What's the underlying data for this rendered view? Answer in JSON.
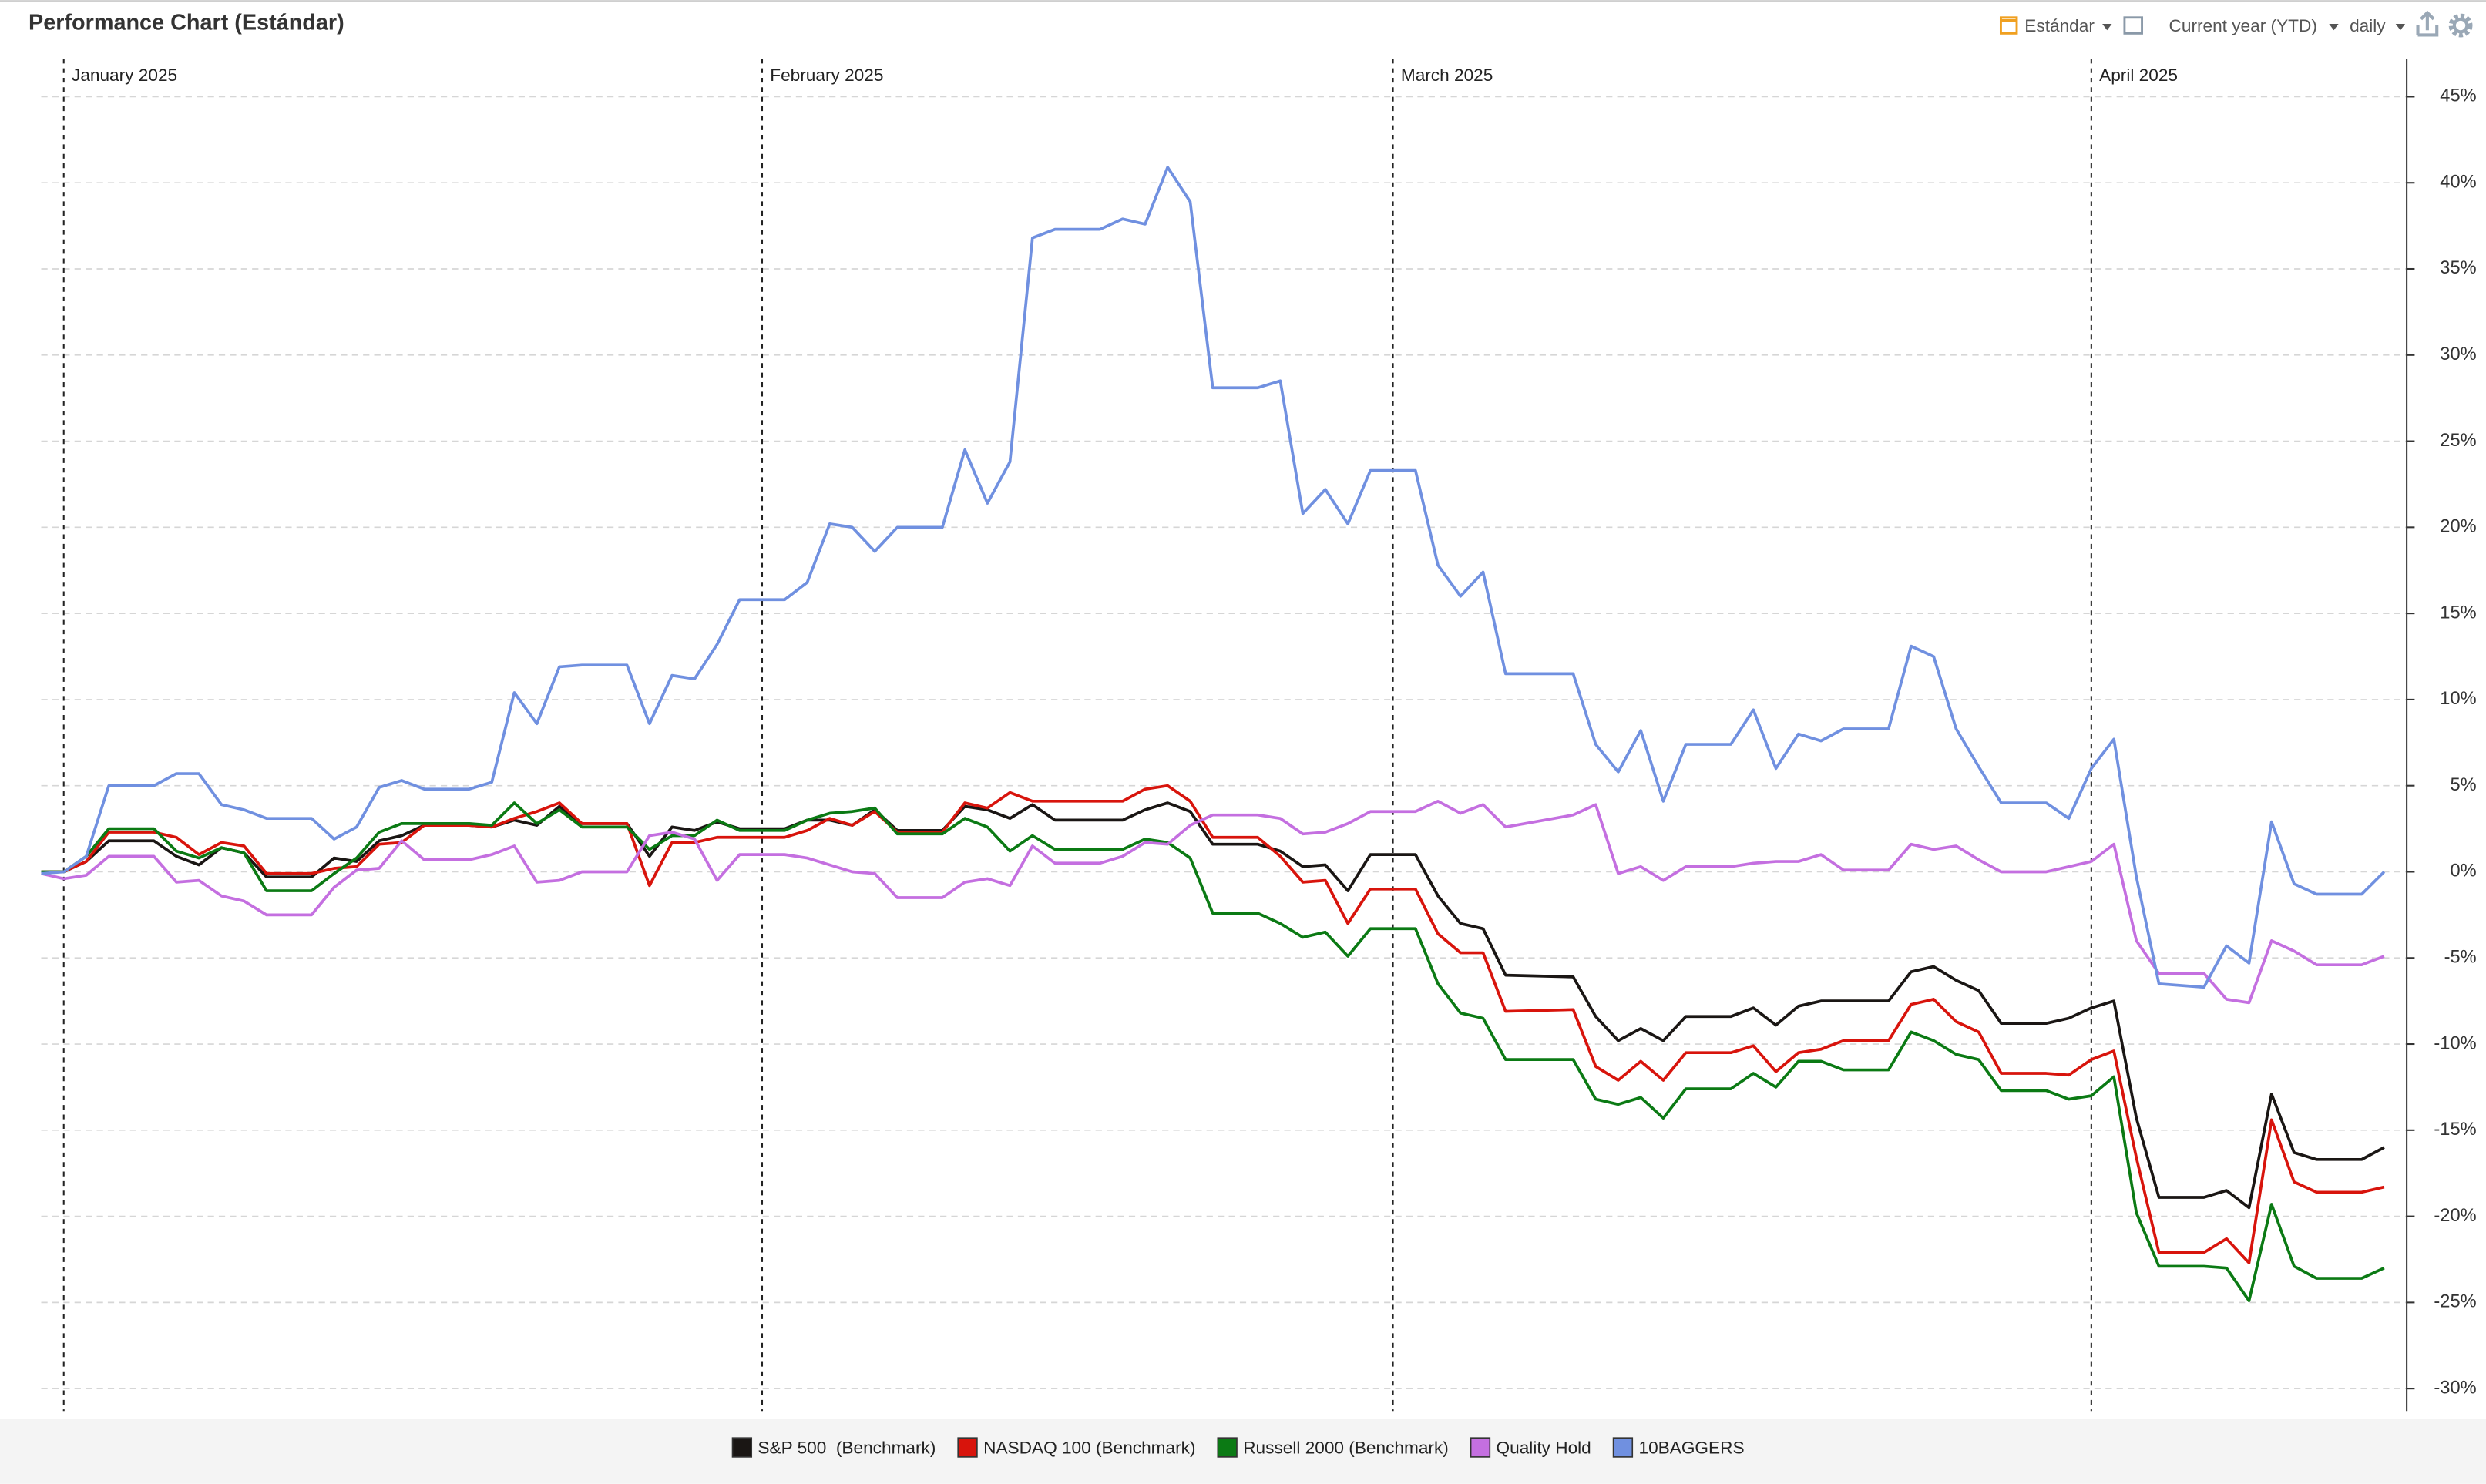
{
  "toolbar": {
    "view": "Estándar",
    "period": "Current year (YTD)",
    "interval": "daily"
  },
  "chart_data": {
    "type": "line",
    "title": "Performance Chart (Estándar)",
    "x": [
      -1,
      0,
      1,
      2,
      4,
      5,
      6,
      7,
      8,
      9,
      11,
      12,
      13,
      14,
      15,
      16,
      18,
      19,
      20,
      21,
      22,
      23,
      25,
      26,
      27,
      28,
      29,
      30,
      32,
      33,
      34,
      35,
      36,
      37,
      39,
      40,
      41,
      42,
      43,
      44,
      46,
      47,
      48,
      49,
      50,
      51,
      53,
      54,
      55,
      56,
      57,
      58,
      60,
      61,
      62,
      63,
      64,
      67,
      68,
      69,
      70,
      71,
      72,
      74,
      75,
      76,
      77,
      78,
      79,
      81,
      82,
      83,
      84,
      85,
      86,
      88,
      89,
      90,
      91,
      92,
      93,
      95,
      96,
      97,
      98,
      99,
      100,
      102,
      103
    ],
    "xlim": [
      -1,
      104
    ],
    "xticks": [
      {
        "value": 0,
        "label": "January 2025"
      },
      {
        "value": 31,
        "label": "February 2025"
      },
      {
        "value": 59,
        "label": "March 2025"
      },
      {
        "value": 90,
        "label": "April 2025"
      }
    ],
    "ylim": [
      -31.3,
      47.2
    ],
    "yticks": [
      {
        "value": -30,
        "label": "-30%"
      },
      {
        "value": -25,
        "label": "-25%"
      },
      {
        "value": -20,
        "label": "-20%"
      },
      {
        "value": -15,
        "label": "-15%"
      },
      {
        "value": -10,
        "label": "-10%"
      },
      {
        "value": -5,
        "label": "-5%"
      },
      {
        "value": 0,
        "label": "0%"
      },
      {
        "value": 5,
        "label": "5%"
      },
      {
        "value": 10,
        "label": "10%"
      },
      {
        "value": 15,
        "label": "15%"
      },
      {
        "value": 20,
        "label": "20%"
      },
      {
        "value": 25,
        "label": "25%"
      },
      {
        "value": 30,
        "label": "30%"
      },
      {
        "value": 35,
        "label": "35%"
      },
      {
        "value": 40,
        "label": "40%"
      },
      {
        "value": 45,
        "label": "45%"
      }
    ],
    "y_axis_side": "right",
    "grid": true,
    "legend": "bottom",
    "series": [
      {
        "name": "S&P 500  (Benchmark)",
        "color": "#1a1614",
        "values": [
          0,
          0,
          0.6,
          1.8,
          1.8,
          0.9,
          0.4,
          1.4,
          1.1,
          -0.3,
          -0.3,
          0.8,
          0.6,
          1.8,
          2.1,
          2.7,
          2.7,
          2.6,
          3.0,
          2.7,
          3.8,
          2.8,
          2.8,
          0.9,
          2.6,
          2.4,
          2.9,
          2.5,
          2.5,
          3.0,
          3.0,
          2.7,
          3.6,
          2.4,
          2.4,
          3.8,
          3.6,
          3.1,
          3.9,
          3.0,
          3.0,
          3.0,
          3.6,
          4.0,
          3.5,
          1.6,
          1.6,
          1.2,
          0.3,
          0.4,
          -1.1,
          1.0,
          1.0,
          -1.4,
          -3.0,
          -3.3,
          -6.0,
          -6.1,
          -8.4,
          -9.8,
          -9.1,
          -9.8,
          -8.4,
          -8.4,
          -7.9,
          -8.9,
          -7.8,
          -7.5,
          -7.5,
          -7.5,
          -5.8,
          -5.5,
          -6.3,
          -6.9,
          -8.8,
          -8.8,
          -8.5,
          -7.9,
          -7.5,
          -14.3,
          -18.9,
          -18.9,
          -18.5,
          -19.5,
          -12.9,
          -16.3,
          -16.7,
          -16.7,
          -16.0
        ]
      },
      {
        "name": "NASDAQ 100 (Benchmark)",
        "color": "#d8140c",
        "values": [
          0,
          0,
          0.6,
          2.3,
          2.3,
          2.0,
          1.0,
          1.7,
          1.5,
          -0.1,
          -0.1,
          0.2,
          0.3,
          1.6,
          1.7,
          2.7,
          2.7,
          2.6,
          3.1,
          3.5,
          4.0,
          2.8,
          2.8,
          -0.8,
          1.7,
          1.7,
          2.0,
          2.0,
          2.0,
          2.4,
          3.1,
          2.7,
          3.5,
          2.3,
          2.3,
          4.0,
          3.7,
          4.6,
          4.1,
          4.1,
          4.1,
          4.1,
          4.8,
          5.0,
          4.1,
          2.0,
          2.0,
          0.9,
          -0.6,
          -0.5,
          -3.0,
          -1.0,
          -1.0,
          -3.6,
          -4.7,
          -4.7,
          -8.1,
          -8.0,
          -11.3,
          -12.1,
          -11.0,
          -12.1,
          -10.5,
          -10.5,
          -10.1,
          -11.6,
          -10.5,
          -10.3,
          -9.8,
          -9.8,
          -7.7,
          -7.4,
          -8.7,
          -9.3,
          -11.7,
          -11.7,
          -11.8,
          -10.9,
          -10.4,
          -16.6,
          -22.1,
          -22.1,
          -21.3,
          -22.7,
          -14.4,
          -18.0,
          -18.6,
          -18.6,
          -18.3
        ]
      },
      {
        "name": "Russell 2000 (Benchmark)",
        "color": "#0b7a14",
        "values": [
          0,
          0,
          0.9,
          2.5,
          2.5,
          1.2,
          0.8,
          1.4,
          1.1,
          -1.1,
          -1.1,
          -0.1,
          0.8,
          2.3,
          2.8,
          2.8,
          2.8,
          2.7,
          4.0,
          2.8,
          3.6,
          2.6,
          2.6,
          1.3,
          2.1,
          2.1,
          3.0,
          2.4,
          2.4,
          3.0,
          3.4,
          3.5,
          3.7,
          2.2,
          2.2,
          3.1,
          2.6,
          1.2,
          2.1,
          1.3,
          1.3,
          1.3,
          1.9,
          1.7,
          0.8,
          -2.4,
          -2.4,
          -3.0,
          -3.8,
          -3.5,
          -4.9,
          -3.3,
          -3.3,
          -6.5,
          -8.2,
          -8.5,
          -10.9,
          -10.9,
          -13.2,
          -13.5,
          -13.1,
          -14.3,
          -12.6,
          -12.6,
          -11.7,
          -12.5,
          -11.0,
          -11.0,
          -11.5,
          -11.5,
          -9.3,
          -9.8,
          -10.6,
          -10.9,
          -12.7,
          -12.7,
          -13.2,
          -13.0,
          -11.9,
          -19.8,
          -22.9,
          -22.9,
          -23.0,
          -24.9,
          -19.3,
          -22.9,
          -23.6,
          -23.6,
          -23.0
        ]
      },
      {
        "name": "Quality Hold",
        "color": "#c46fe0",
        "values": [
          -0.1,
          -0.4,
          -0.2,
          0.9,
          0.9,
          -0.6,
          -0.5,
          -1.4,
          -1.7,
          -2.5,
          -2.5,
          -0.9,
          0.1,
          0.2,
          1.8,
          0.7,
          0.7,
          1.0,
          1.5,
          -0.6,
          -0.5,
          0.0,
          0.0,
          2.1,
          2.3,
          1.9,
          -0.5,
          1.0,
          1.0,
          0.8,
          0.4,
          0.0,
          -0.1,
          -1.5,
          -1.5,
          -0.6,
          -0.4,
          -0.8,
          1.5,
          0.5,
          0.5,
          0.9,
          1.7,
          1.6,
          2.7,
          3.3,
          3.3,
          3.1,
          2.2,
          2.3,
          2.8,
          3.5,
          3.5,
          4.1,
          3.4,
          3.9,
          2.6,
          3.3,
          3.9,
          -0.1,
          0.3,
          -0.5,
          0.3,
          0.3,
          0.5,
          0.6,
          0.6,
          1.0,
          0.1,
          0.1,
          1.6,
          1.3,
          1.5,
          0.7,
          0.0,
          0.0,
          0.3,
          0.6,
          1.6,
          -4.0,
          -5.9,
          -5.9,
          -7.4,
          -7.6,
          -4.0,
          -4.6,
          -5.4,
          -5.4,
          -4.9
        ]
      },
      {
        "name": "10BAGGERS",
        "color": "#7090e0",
        "values": [
          -0.1,
          0.0,
          0.9,
          5.0,
          5.0,
          5.7,
          5.7,
          3.9,
          3.6,
          3.1,
          3.1,
          1.9,
          2.6,
          4.9,
          5.3,
          4.8,
          4.8,
          5.2,
          10.4,
          8.6,
          11.9,
          12.0,
          12.0,
          8.6,
          11.4,
          11.2,
          13.2,
          15.8,
          15.8,
          16.8,
          20.2,
          20.0,
          18.6,
          20.0,
          20.0,
          24.5,
          21.4,
          23.8,
          36.8,
          37.3,
          37.3,
          37.9,
          37.6,
          40.9,
          38.9,
          28.1,
          28.1,
          28.5,
          20.8,
          22.2,
          20.2,
          23.3,
          23.3,
          17.8,
          16.0,
          17.4,
          11.5,
          11.5,
          7.4,
          5.8,
          8.2,
          4.1,
          7.4,
          7.4,
          9.4,
          6.0,
          8.0,
          7.6,
          8.3,
          8.3,
          13.1,
          12.5,
          8.3,
          6.1,
          4.0,
          4.0,
          3.1,
          6.0,
          7.7,
          -0.3,
          -6.5,
          -6.7,
          -4.3,
          -5.3,
          2.9,
          -0.7,
          -1.3,
          -1.3,
          0.0
        ]
      }
    ]
  }
}
